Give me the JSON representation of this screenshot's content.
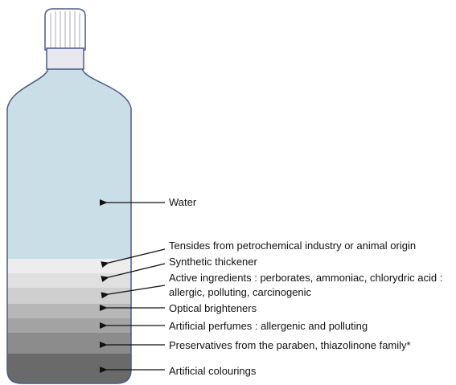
{
  "labels": [
    {
      "lines": [
        "Water"
      ]
    },
    {
      "lines": [
        "Tensides from petrochemical industry or animal origin"
      ]
    },
    {
      "lines": [
        "Synthetic thickener"
      ]
    },
    {
      "lines": [
        "Active ingredients : perborates, ammoniac, chlorydric acid :",
        "allergic, polluting, carcinogenic"
      ]
    },
    {
      "lines": [
        "Optical brighteners"
      ]
    },
    {
      "lines": [
        "Artificial perfumes : allergenic and polluting"
      ]
    },
    {
      "lines": [
        "Preservatives from the paraben, thiazolinone family*"
      ]
    },
    {
      "lines": [
        "Artificial colourings"
      ]
    }
  ]
}
